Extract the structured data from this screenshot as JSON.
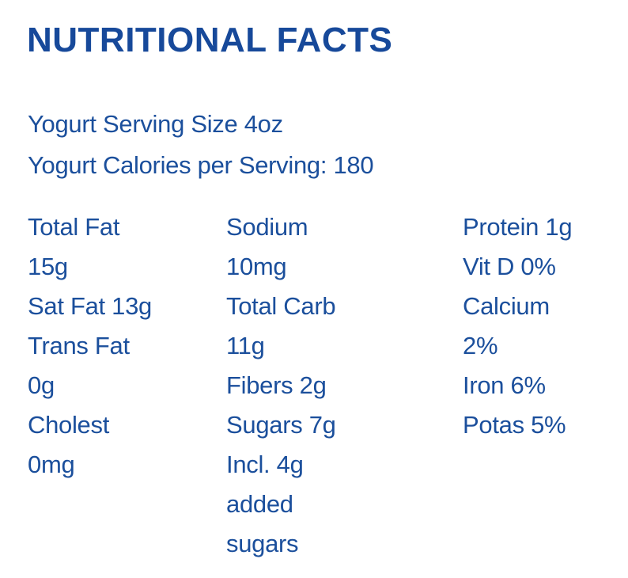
{
  "nutrition": {
    "title": "NUTRITIONAL FACTS",
    "serving_lines": [
      "Yogurt Serving Size 4oz",
      "Yogurt Calories per Serving: 180"
    ],
    "columns": [
      {
        "lines": [
          "Total Fat",
          "15g",
          "Sat Fat 13g",
          "Trans Fat",
          "0g",
          "Cholest",
          "0mg"
        ]
      },
      {
        "lines": [
          "Sodium",
          "10mg",
          "Total Carb",
          "11g",
          "Fibers 2g",
          "Sugars 7g",
          "Incl. 4g",
          "added",
          "sugars"
        ]
      },
      {
        "lines": [
          "Protein 1g",
          "Vit D 0%",
          "Calcium",
          "2%",
          "Iron 6%",
          "Potas 5%"
        ]
      }
    ],
    "colors": {
      "title_blue": "#17499A",
      "text_blue": "#1B4F9C",
      "background": "#FFFFFF"
    }
  }
}
